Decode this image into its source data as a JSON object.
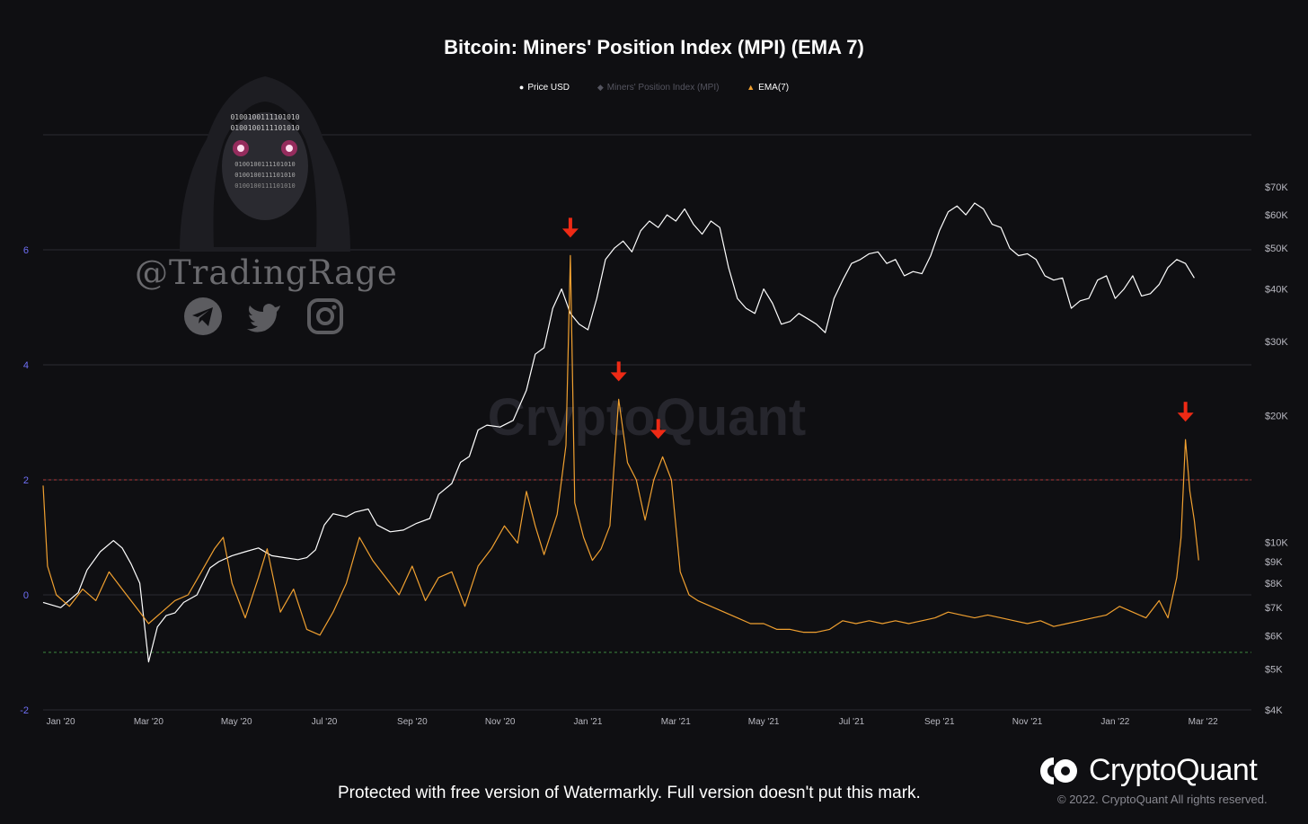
{
  "chart_data": {
    "type": "line",
    "title": "Bitcoin: Miners' Position Index (MPI) (EMA 7)",
    "legend": [
      {
        "label": "Price USD",
        "symbol": "●",
        "color": "#ffffff"
      },
      {
        "label": "Miners' Position Index (MPI)",
        "symbol": "◆",
        "color": "#555560"
      },
      {
        "label": "EMA(7)",
        "symbol": "▲",
        "color": "#f0a030"
      }
    ],
    "x_ticks": [
      "Jan '20",
      "Mar '20",
      "May '20",
      "Jul '20",
      "Sep '20",
      "Nov '20",
      "Jan '21",
      "Mar '21",
      "May '21",
      "Jul '21",
      "Sep '21",
      "Nov '21",
      "Jan '22",
      "Mar '22"
    ],
    "y_left": {
      "ticks": [
        "6",
        "4",
        "2",
        "0",
        "-2"
      ],
      "range": [
        -2,
        8
      ]
    },
    "y_right": {
      "ticks": [
        "$70K",
        "$60K",
        "$50K",
        "$40K",
        "$30K",
        "$20K",
        "$10K",
        "$9K",
        "$8K",
        "$7K",
        "$6K",
        "$5K",
        "$4K"
      ],
      "scale": "log"
    },
    "reference_lines": [
      {
        "value": 2,
        "color": "#b03a3a"
      },
      {
        "value": -1,
        "color": "#3d8a3d"
      }
    ],
    "x_domain_months": [
      0,
      27.5
    ],
    "series": [
      {
        "name": "Price USD",
        "color": "#ffffff",
        "axis": "right",
        "points": [
          [
            0,
            7200
          ],
          [
            0.4,
            7000
          ],
          [
            0.8,
            7600
          ],
          [
            1.0,
            8600
          ],
          [
            1.3,
            9500
          ],
          [
            1.6,
            10100
          ],
          [
            1.8,
            9700
          ],
          [
            2.0,
            8900
          ],
          [
            2.2,
            8000
          ],
          [
            2.4,
            5200
          ],
          [
            2.6,
            6300
          ],
          [
            2.8,
            6700
          ],
          [
            3.0,
            6800
          ],
          [
            3.2,
            7200
          ],
          [
            3.5,
            7500
          ],
          [
            3.8,
            8700
          ],
          [
            4.0,
            9000
          ],
          [
            4.3,
            9300
          ],
          [
            4.6,
            9500
          ],
          [
            4.9,
            9700
          ],
          [
            5.2,
            9300
          ],
          [
            5.5,
            9200
          ],
          [
            5.8,
            9100
          ],
          [
            6.0,
            9200
          ],
          [
            6.2,
            9600
          ],
          [
            6.4,
            11000
          ],
          [
            6.6,
            11700
          ],
          [
            6.9,
            11500
          ],
          [
            7.1,
            11800
          ],
          [
            7.4,
            12000
          ],
          [
            7.6,
            11000
          ],
          [
            7.9,
            10600
          ],
          [
            8.2,
            10700
          ],
          [
            8.5,
            11100
          ],
          [
            8.8,
            11400
          ],
          [
            9.0,
            13000
          ],
          [
            9.3,
            13800
          ],
          [
            9.5,
            15500
          ],
          [
            9.7,
            16000
          ],
          [
            9.9,
            18500
          ],
          [
            10.1,
            19000
          ],
          [
            10.4,
            18800
          ],
          [
            10.7,
            19500
          ],
          [
            11.0,
            23000
          ],
          [
            11.2,
            28000
          ],
          [
            11.4,
            29000
          ],
          [
            11.6,
            36000
          ],
          [
            11.8,
            40000
          ],
          [
            12.0,
            35000
          ],
          [
            12.2,
            33000
          ],
          [
            12.4,
            32000
          ],
          [
            12.6,
            38000
          ],
          [
            12.8,
            47000
          ],
          [
            13.0,
            50000
          ],
          [
            13.2,
            52000
          ],
          [
            13.4,
            49000
          ],
          [
            13.6,
            55000
          ],
          [
            13.8,
            58000
          ],
          [
            14.0,
            56000
          ],
          [
            14.2,
            60000
          ],
          [
            14.4,
            58000
          ],
          [
            14.6,
            62000
          ],
          [
            14.8,
            57000
          ],
          [
            15.0,
            54000
          ],
          [
            15.2,
            58000
          ],
          [
            15.4,
            56000
          ],
          [
            15.6,
            45000
          ],
          [
            15.8,
            38000
          ],
          [
            16.0,
            36000
          ],
          [
            16.2,
            35000
          ],
          [
            16.4,
            40000
          ],
          [
            16.6,
            37000
          ],
          [
            16.8,
            33000
          ],
          [
            17.0,
            33500
          ],
          [
            17.2,
            35000
          ],
          [
            17.4,
            34000
          ],
          [
            17.6,
            33000
          ],
          [
            17.8,
            31500
          ],
          [
            18.0,
            38000
          ],
          [
            18.2,
            42000
          ],
          [
            18.4,
            46000
          ],
          [
            18.6,
            47000
          ],
          [
            18.8,
            48500
          ],
          [
            19.0,
            49000
          ],
          [
            19.2,
            46000
          ],
          [
            19.4,
            47000
          ],
          [
            19.6,
            43000
          ],
          [
            19.8,
            44000
          ],
          [
            20.0,
            43500
          ],
          [
            20.2,
            48000
          ],
          [
            20.4,
            55000
          ],
          [
            20.6,
            61000
          ],
          [
            20.8,
            63000
          ],
          [
            21.0,
            60000
          ],
          [
            21.2,
            64000
          ],
          [
            21.4,
            62000
          ],
          [
            21.6,
            57000
          ],
          [
            21.8,
            56000
          ],
          [
            22.0,
            50000
          ],
          [
            22.2,
            48000
          ],
          [
            22.4,
            48500
          ],
          [
            22.6,
            47000
          ],
          [
            22.8,
            43000
          ],
          [
            23.0,
            42000
          ],
          [
            23.2,
            42500
          ],
          [
            23.4,
            36000
          ],
          [
            23.6,
            37500
          ],
          [
            23.8,
            38000
          ],
          [
            24.0,
            42000
          ],
          [
            24.2,
            43000
          ],
          [
            24.4,
            38000
          ],
          [
            24.6,
            40000
          ],
          [
            24.8,
            43000
          ],
          [
            25.0,
            38500
          ],
          [
            25.2,
            39000
          ],
          [
            25.4,
            41000
          ],
          [
            25.6,
            45000
          ],
          [
            25.8,
            47000
          ],
          [
            26.0,
            46000
          ],
          [
            26.2,
            42500
          ]
        ]
      },
      {
        "name": "EMA(7)",
        "color": "#f0a030",
        "axis": "left",
        "points": [
          [
            0,
            1.9
          ],
          [
            0.1,
            0.5
          ],
          [
            0.3,
            0.0
          ],
          [
            0.6,
            -0.2
          ],
          [
            0.9,
            0.1
          ],
          [
            1.2,
            -0.1
          ],
          [
            1.5,
            0.4
          ],
          [
            1.8,
            0.1
          ],
          [
            2.1,
            -0.2
          ],
          [
            2.4,
            -0.5
          ],
          [
            2.7,
            -0.3
          ],
          [
            3.0,
            -0.1
          ],
          [
            3.3,
            0.0
          ],
          [
            3.6,
            0.4
          ],
          [
            3.9,
            0.8
          ],
          [
            4.1,
            1.0
          ],
          [
            4.3,
            0.2
          ],
          [
            4.6,
            -0.4
          ],
          [
            4.9,
            0.3
          ],
          [
            5.1,
            0.8
          ],
          [
            5.4,
            -0.3
          ],
          [
            5.7,
            0.1
          ],
          [
            6.0,
            -0.6
          ],
          [
            6.3,
            -0.7
          ],
          [
            6.6,
            -0.3
          ],
          [
            6.9,
            0.2
          ],
          [
            7.2,
            1.0
          ],
          [
            7.5,
            0.6
          ],
          [
            7.8,
            0.3
          ],
          [
            8.1,
            0.0
          ],
          [
            8.4,
            0.5
          ],
          [
            8.7,
            -0.1
          ],
          [
            9.0,
            0.3
          ],
          [
            9.3,
            0.4
          ],
          [
            9.6,
            -0.2
          ],
          [
            9.9,
            0.5
          ],
          [
            10.2,
            0.8
          ],
          [
            10.5,
            1.2
          ],
          [
            10.8,
            0.9
          ],
          [
            11.0,
            1.8
          ],
          [
            11.2,
            1.2
          ],
          [
            11.4,
            0.7
          ],
          [
            11.7,
            1.4
          ],
          [
            11.9,
            2.6
          ],
          [
            12.0,
            5.9
          ],
          [
            12.1,
            1.6
          ],
          [
            12.3,
            1.0
          ],
          [
            12.5,
            0.6
          ],
          [
            12.7,
            0.8
          ],
          [
            12.9,
            1.2
          ],
          [
            13.1,
            3.4
          ],
          [
            13.3,
            2.3
          ],
          [
            13.5,
            2.0
          ],
          [
            13.7,
            1.3
          ],
          [
            13.9,
            2.0
          ],
          [
            14.1,
            2.4
          ],
          [
            14.3,
            2.0
          ],
          [
            14.5,
            0.4
          ],
          [
            14.7,
            0.0
          ],
          [
            14.9,
            -0.1
          ],
          [
            15.2,
            -0.2
          ],
          [
            15.5,
            -0.3
          ],
          [
            15.8,
            -0.4
          ],
          [
            16.1,
            -0.5
          ],
          [
            16.4,
            -0.5
          ],
          [
            16.7,
            -0.6
          ],
          [
            17.0,
            -0.6
          ],
          [
            17.3,
            -0.65
          ],
          [
            17.6,
            -0.65
          ],
          [
            17.9,
            -0.6
          ],
          [
            18.2,
            -0.45
          ],
          [
            18.5,
            -0.5
          ],
          [
            18.8,
            -0.45
          ],
          [
            19.1,
            -0.5
          ],
          [
            19.4,
            -0.45
          ],
          [
            19.7,
            -0.5
          ],
          [
            20.0,
            -0.45
          ],
          [
            20.3,
            -0.4
          ],
          [
            20.6,
            -0.3
          ],
          [
            20.9,
            -0.35
          ],
          [
            21.2,
            -0.4
          ],
          [
            21.5,
            -0.35
          ],
          [
            21.8,
            -0.4
          ],
          [
            22.1,
            -0.45
          ],
          [
            22.4,
            -0.5
          ],
          [
            22.7,
            -0.45
          ],
          [
            23.0,
            -0.55
          ],
          [
            23.3,
            -0.5
          ],
          [
            23.6,
            -0.45
          ],
          [
            23.9,
            -0.4
          ],
          [
            24.2,
            -0.35
          ],
          [
            24.5,
            -0.2
          ],
          [
            24.8,
            -0.3
          ],
          [
            25.1,
            -0.4
          ],
          [
            25.4,
            -0.1
          ],
          [
            25.6,
            -0.4
          ],
          [
            25.8,
            0.3
          ],
          [
            25.9,
            1.0
          ],
          [
            26.0,
            2.7
          ],
          [
            26.1,
            1.8
          ],
          [
            26.2,
            1.3
          ],
          [
            26.3,
            0.6
          ]
        ]
      }
    ],
    "annotations": [
      {
        "type": "arrow-down",
        "color": "#ee2a15",
        "x": 12.0,
        "y": 5.9
      },
      {
        "type": "arrow-down",
        "color": "#ee2a15",
        "x": 13.1,
        "y": 3.4
      },
      {
        "type": "arrow-down",
        "color": "#ee2a15",
        "x": 14.0,
        "y": 2.4
      },
      {
        "type": "arrow-down",
        "color": "#ee2a15",
        "x": 26.0,
        "y": 2.7
      }
    ]
  },
  "background_watermark": "CryptoQuant",
  "overlay": {
    "handle": "@TradingRage",
    "avatar_code": "0100100111101010",
    "social_icons": [
      "telegram-icon",
      "twitter-icon",
      "instagram-icon"
    ]
  },
  "footer": {
    "brand": "CryptoQuant",
    "copyright": "© 2022. CryptoQuant All rights reserved.",
    "watermark_notice": "Protected with free version of Watermarkly. Full version doesn't put this mark."
  }
}
